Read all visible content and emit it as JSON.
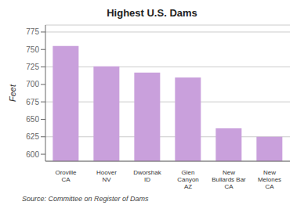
{
  "chart_data": {
    "type": "bar",
    "title": "Highest U.S. Dams",
    "categories": [
      "Oroville\nCA",
      "Hoover\nNV",
      "Dworshak\nID",
      "Glen\nCanyon\nAZ",
      "New\nBullards Bar\nCA",
      "New\nMelones\nCA"
    ],
    "values": [
      755,
      726,
      717,
      710,
      637,
      625
    ],
    "color": "#c9a0dc",
    "ylim": [
      590,
      785
    ],
    "yticks": [
      600,
      625,
      650,
      675,
      700,
      725,
      750,
      775
    ],
    "ylabel": "Feet",
    "grid": true,
    "annotations": [
      "Source: Committee on Register of Dams"
    ]
  }
}
